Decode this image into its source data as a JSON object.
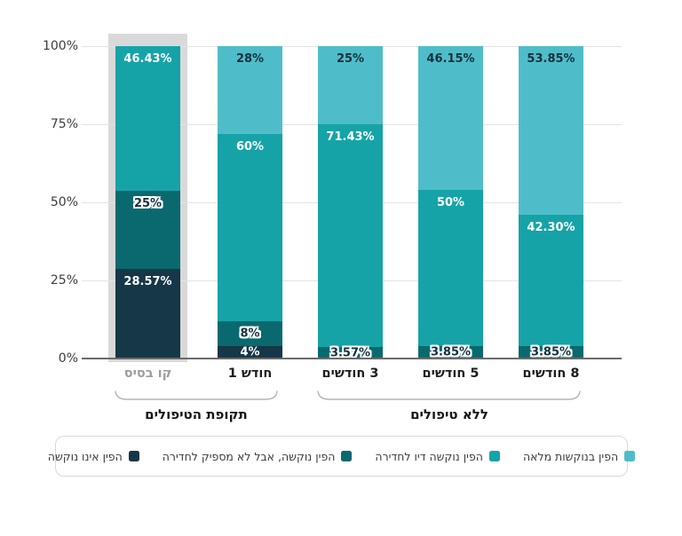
{
  "colors": {
    "full": "#4fbdc9",
    "sufficient": "#16a3a7",
    "insufficient": "#0a696e",
    "none": "#153748",
    "highlight_band": "#d9d9d9",
    "gridline": "#e4e4e4",
    "axis_line": "#6a6a6a",
    "muted_category": "#9c9c9c"
  },
  "legend": {
    "items": [
      {
        "label": "הפין בנוקשות מלאה",
        "color": "#4fbdc9"
      },
      {
        "label": "הפין נוקשה דיו לחדירה",
        "color": "#16a3a7"
      },
      {
        "label": "הפין נוקשה, אבל לא מספיק לחדירה",
        "color": "#0a696e"
      },
      {
        "label": "הפין אינו נוקשה",
        "color": "#153748"
      }
    ]
  },
  "chart_data": {
    "type": "bar",
    "stacked": true,
    "unit": "%",
    "ylim": [
      0,
      100
    ],
    "y_ticks": [
      "0%",
      "25%",
      "50%",
      "75%",
      "100%"
    ],
    "grid": true,
    "categories": [
      "קו בסיס",
      "חודש 1",
      "3 חודשים",
      "5 חודשים",
      "8 חודשים"
    ],
    "highlighted_category": "קו בסיס",
    "bars": [
      {
        "category": "קו בסיס",
        "segments": [
          {
            "series": "הפין אינו נוקשה",
            "value": 28.57,
            "label": "28.57%",
            "label_style": "white"
          },
          {
            "series": "הפין נוקשה, אבל לא מספיק לחדירה",
            "value": 25,
            "label": "25%",
            "label_style": "outline"
          },
          {
            "series": "הפין נוקשה דיו לחדירה",
            "value": 46.43,
            "label": "46.43%",
            "label_style": "white"
          }
        ]
      },
      {
        "category": "חודש 1",
        "segments": [
          {
            "series": "הפין אינו נוקשה",
            "value": 4,
            "label": "4%",
            "label_style": "white"
          },
          {
            "series": "הפין נוקשה, אבל לא מספיק לחדירה",
            "value": 8,
            "label": "8%",
            "label_style": "outline"
          },
          {
            "series": "הפין נוקשה דיו לחדירה",
            "value": 60,
            "label": "60%",
            "label_style": "white"
          },
          {
            "series": "הפין בנוקשות מלאה",
            "value": 28,
            "label": "28%",
            "label_style": "dark"
          }
        ]
      },
      {
        "category": "3 חודשים",
        "segments": [
          {
            "series": "הפין נוקשה, אבל לא מספיק לחדירה",
            "value": 3.57,
            "label": "3.57%",
            "label_style": "outline"
          },
          {
            "series": "הפין נוקשה דיו לחדירה",
            "value": 71.43,
            "label": "71.43%",
            "label_style": "white"
          },
          {
            "series": "הפין בנוקשות מלאה",
            "value": 25,
            "label": "25%",
            "label_style": "dark"
          }
        ]
      },
      {
        "category": "5 חודשים",
        "segments": [
          {
            "series": "הפין נוקשה, אבל לא מספיק לחדירה",
            "value": 3.85,
            "label": "3.85%",
            "label_style": "outline"
          },
          {
            "series": "הפין נוקשה דיו לחדירה",
            "value": 50,
            "label": "50%",
            "label_style": "white"
          },
          {
            "series": "הפין בנוקשות מלאה",
            "value": 46.15,
            "label": "46.15%",
            "label_style": "dark"
          }
        ]
      },
      {
        "category": "8 חודשים",
        "segments": [
          {
            "series": "הפין נוקשה, אבל לא מספיק לחדירה",
            "value": 3.85,
            "label": "3.85%",
            "label_style": "outline"
          },
          {
            "series": "הפין נוקשה דיו לחדירה",
            "value": 42.3,
            "label": "42.30%",
            "label_style": "white"
          },
          {
            "series": "הפין בנוקשות מלאה",
            "value": 53.85,
            "label": "53.85%",
            "label_style": "dark"
          }
        ]
      }
    ],
    "groups": [
      {
        "label": "תקופת הטיפולים",
        "categories": [
          "קו בסיס",
          "חודש 1"
        ]
      },
      {
        "label": "ללא טיפולים",
        "categories": [
          "3 חודשים",
          "5 חודשים",
          "8 חודשים"
        ]
      }
    ],
    "legend_position": "bottom"
  }
}
